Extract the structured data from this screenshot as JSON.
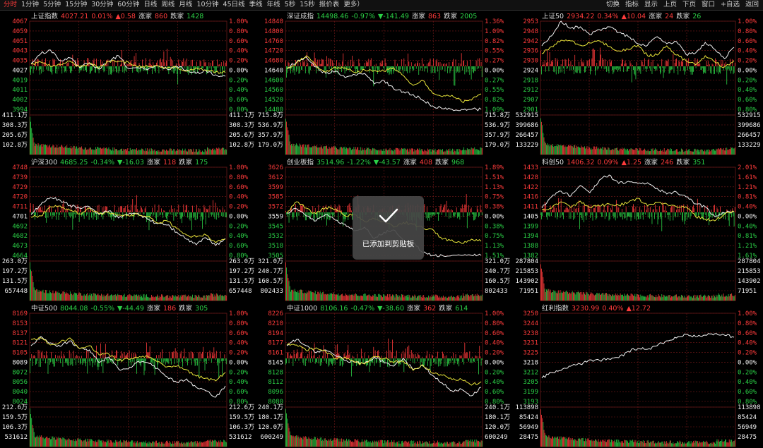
{
  "timeframes": [
    {
      "label": "分时",
      "active": true
    },
    {
      "label": "1分钟"
    },
    {
      "label": "5分钟"
    },
    {
      "label": "15分钟"
    },
    {
      "label": "30分钟"
    },
    {
      "label": "60分钟"
    },
    {
      "label": "日线"
    },
    {
      "label": "周线"
    },
    {
      "label": "月线"
    },
    {
      "label": "10分钟"
    },
    {
      "label": "45日线"
    },
    {
      "label": "季线"
    },
    {
      "label": "年线"
    },
    {
      "label": "5秒"
    },
    {
      "label": "15秒"
    },
    {
      "label": "报价表"
    },
    {
      "label": "更多）"
    }
  ],
  "tools": [
    {
      "label": "切换"
    },
    {
      "label": "指标"
    },
    {
      "label": "显示"
    },
    {
      "label": "上页"
    },
    {
      "label": "下页"
    },
    {
      "label": "窗口"
    },
    {
      "label": "+自选"
    },
    {
      "label": "返回"
    }
  ],
  "colors": {
    "up": "#ff3b3b",
    "down": "#2bd046",
    "white": "#f0f0f0",
    "yellow": "#e8e43a",
    "grid": "#7a1b1b",
    "bg": "#000000"
  },
  "toast": {
    "icon": "check-icon",
    "message": "已添加到剪贴板"
  },
  "panels": [
    {
      "name": "上证指数",
      "price": "4027.21",
      "pct": "0.01%",
      "chg": "▲0.58",
      "dir": "up",
      "rise_label": "涨家",
      "rise": "860",
      "fall_label": "跌家",
      "fall": "1428",
      "y_left": [
        "4067",
        "4059",
        "4051",
        "4043",
        "4035",
        "4027",
        "4019",
        "4011",
        "4002",
        "3994"
      ],
      "y_right": [
        "1.00%",
        "0.80%",
        "0.60%",
        "0.40%",
        "0.20%",
        "0.00%",
        "0.20%",
        "0.40%",
        "0.60%",
        "0.80%"
      ],
      "vol_left": [
        "411.1万",
        "308.3万",
        "205.6万",
        "102.8万"
      ],
      "vol_right": [
        "411.1万",
        "308.3万",
        "205.6万",
        "102.8万"
      ],
      "white": [
        4,
        18,
        23,
        8,
        12,
        -2,
        5,
        -4,
        7,
        15,
        -3,
        -2,
        -5,
        1,
        -4,
        0,
        -5,
        -10,
        -6,
        -12,
        -14
      ],
      "yellow": [
        3,
        6,
        0,
        2,
        7,
        -1,
        4,
        -2,
        7,
        7,
        6,
        -1,
        0,
        1,
        -2,
        -2,
        -7,
        -2,
        -5,
        -8,
        -9
      ]
    },
    {
      "name": "深证成指",
      "price": "14498.46",
      "pct": "-0.97%",
      "chg": "▼-141.49",
      "dir": "down",
      "rise_label": "涨家",
      "rise": "863",
      "fall_label": "跌家",
      "fall": "2005",
      "y_left": [
        "14840",
        "14800",
        "14760",
        "14720",
        "14680",
        "14640",
        "14600",
        "14560",
        "14520",
        "14480"
      ],
      "y_right": [
        "1.36%",
        "1.09%",
        "0.82%",
        "0.55%",
        "0.27%",
        "0.00%",
        "0.27%",
        "0.55%",
        "0.82%",
        "1.09%"
      ],
      "vol_left": [
        "715.8万",
        "536.9万",
        "357.9万",
        "179.0万"
      ],
      "vol_right": [
        "715.8万",
        "536.9万",
        "357.9万",
        "179.0万"
      ],
      "white": [
        -3,
        6,
        13,
        -1,
        -10,
        -7,
        -16,
        -12,
        -10,
        -25,
        -20,
        -32,
        -36,
        -40,
        -48,
        -56,
        -60,
        -66,
        -86,
        -92,
        -75
      ],
      "yellow": [
        -4,
        5,
        15,
        1,
        -8,
        -1,
        -2,
        -9,
        -5,
        -6,
        -7,
        -2,
        -13,
        -27,
        -20,
        -38,
        -43,
        -41,
        -50,
        -48,
        -39
      ]
    },
    {
      "name": "上证50",
      "price": "2934.22",
      "pct": "0.34%",
      "chg": "▲10.04",
      "dir": "up",
      "rise_label": "涨家",
      "rise": "24",
      "fall_label": "跌家",
      "fall": "26",
      "y_left": [
        "2953",
        "2948",
        "2942",
        "2936",
        "2930",
        "2924",
        "2918",
        "2912",
        "2907",
        "2901"
      ],
      "y_right": [
        "1.00%",
        "0.80%",
        "0.60%",
        "0.40%",
        "0.20%",
        "0.00%",
        "0.20%",
        "0.40%",
        "0.60%",
        "0.80%"
      ],
      "vol_left": [
        "532915",
        "399686",
        "266457",
        "133229"
      ],
      "vol_right": [
        "532915",
        "399686",
        "266457",
        "133229"
      ],
      "white": [
        29,
        43,
        64,
        54,
        56,
        45,
        52,
        56,
        48,
        42,
        32,
        30,
        42,
        32,
        35,
        17,
        19,
        34,
        24,
        11,
        27
      ],
      "yellow": [
        18,
        28,
        37,
        36,
        30,
        33,
        36,
        28,
        22,
        24,
        30,
        15,
        16,
        29,
        16,
        8,
        2,
        15,
        6,
        -1,
        8
      ]
    },
    {
      "name": "沪深300",
      "price": "4685.25",
      "pct": "-0.34%",
      "chg": "▼-16.03",
      "dir": "down",
      "rise_label": "涨家",
      "rise": "118",
      "fall_label": "跌家",
      "fall": "175",
      "y_left": [
        "4748",
        "4739",
        "4729",
        "4720",
        "4711",
        "4701",
        "4692",
        "4682",
        "4673",
        "4664"
      ],
      "y_right": [
        "1.00%",
        "0.80%",
        "0.60%",
        "0.40%",
        "0.20%",
        "0.00%",
        "0.20%",
        "0.40%",
        "0.60%",
        "0.80%"
      ],
      "vol_left": [
        "263.0万",
        "197.2万",
        "131.5万",
        "657448"
      ],
      "vol_right": [
        "263.0万",
        "197.2万",
        "131.5万",
        "657448"
      ],
      "white": [
        -3,
        11,
        21,
        17,
        10,
        6,
        8,
        -3,
        2,
        -8,
        -3,
        -1,
        -10,
        -16,
        -18,
        -28,
        -38,
        -46,
        -36,
        -47,
        -37
      ],
      "yellow": [
        -7,
        -5,
        8,
        9,
        3,
        -2,
        6,
        -2,
        0,
        -4,
        -4,
        -3,
        -6,
        -15,
        -12,
        -23,
        -32,
        -35,
        -32,
        -43,
        -38
      ]
    },
    {
      "name": "创业板指",
      "price": "3514.96",
      "pct": "-1.22%",
      "chg": "▼-43.57",
      "dir": "down",
      "rise_label": "涨家",
      "rise": "408",
      "fall_label": "跌家",
      "fall": "968",
      "y_left": [
        "3626",
        "3612",
        "3599",
        "3585",
        "3572",
        "3559",
        "3545",
        "3532",
        "3518",
        "3505"
      ],
      "y_right": [
        "1.89%",
        "1.51%",
        "1.13%",
        "0.75%",
        "0.38%",
        "0.00%",
        "0.38%",
        "0.75%",
        "1.13%",
        "1.51%"
      ],
      "vol_left": [
        "321.0万",
        "240.7万",
        "160.5万",
        "802433"
      ],
      "vol_right": [
        "321.0万",
        "240.7万",
        "160.5万",
        "802433"
      ],
      "white": [
        -1,
        5,
        -5,
        -12,
        -3,
        -11,
        -17,
        -26,
        -21,
        -37,
        -28,
        -25,
        -40,
        -43,
        -57,
        -68,
        -66,
        -74,
        -88,
        -76,
        -66
      ],
      "yellow": [
        -1,
        15,
        6,
        -2,
        7,
        5,
        -5,
        -3,
        -13,
        -9,
        -13,
        -21,
        -14,
        -17,
        -22,
        -24,
        -38,
        -39,
        -44,
        -38,
        -41
      ]
    },
    {
      "name": "科创50",
      "price": "1406.32",
      "pct": "0.09%",
      "chg": "▲1.25",
      "dir": "up",
      "rise_label": "涨家",
      "rise": "246",
      "fall_label": "跌家",
      "fall": "351",
      "y_left": [
        "1433",
        "1428",
        "1422",
        "1416",
        "1411",
        "1405",
        "1399",
        "1394",
        "1388",
        "1382"
      ],
      "y_right": [
        "2.01%",
        "1.61%",
        "1.21%",
        "0.81%",
        "0.40%",
        "0.00%",
        "0.40%",
        "0.81%",
        "1.21%",
        "1.61%"
      ],
      "vol_left": [
        "287804",
        "215853",
        "143902",
        "71951"
      ],
      "vol_right": [
        "287804",
        "215853",
        "143902",
        "71951"
      ],
      "white": [
        6,
        22,
        30,
        23,
        38,
        28,
        46,
        53,
        41,
        44,
        41,
        42,
        34,
        26,
        29,
        22,
        12,
        8,
        -6,
        -1,
        2
      ],
      "yellow": [
        4,
        6,
        15,
        7,
        16,
        7,
        9,
        12,
        10,
        14,
        20,
        9,
        14,
        12,
        8,
        8,
        -6,
        -10,
        -12,
        -3,
        1
      ]
    },
    {
      "name": "中证500",
      "price": "8044.08",
      "pct": "-0.55%",
      "chg": "▼-44.49",
      "dir": "down",
      "rise_label": "涨家",
      "rise": "186",
      "fall_label": "跌家",
      "fall": "305",
      "y_left": [
        "8169",
        "8153",
        "8137",
        "8121",
        "8105",
        "8089",
        "8072",
        "8056",
        "8040",
        "8024"
      ],
      "y_right": [
        "1.00%",
        "0.80%",
        "0.60%",
        "0.40%",
        "0.20%",
        "0.00%",
        "0.20%",
        "0.40%",
        "0.60%",
        "0.80%"
      ],
      "vol_left": [
        "212.6万",
        "159.5万",
        "106.3万",
        "531612"
      ],
      "vol_right": [
        "212.6万",
        "159.5万",
        "106.3万",
        "531612"
      ],
      "white": [
        18,
        31,
        22,
        17,
        25,
        14,
        12,
        -6,
        2,
        -15,
        -15,
        -4,
        -6,
        -14,
        -26,
        -34,
        -29,
        -41,
        -46,
        -55,
        -39
      ],
      "yellow": [
        27,
        29,
        19,
        23,
        29,
        14,
        18,
        5,
        6,
        -3,
        -1,
        1,
        3,
        -5,
        -12,
        -11,
        -16,
        -25,
        -28,
        -32,
        -20
      ]
    },
    {
      "name": "中证1000",
      "price": "8106.16",
      "pct": "-0.47%",
      "chg": "▼-38.60",
      "dir": "down",
      "rise_label": "涨家",
      "rise": "362",
      "fall_label": "跌家",
      "fall": "614",
      "y_left": [
        "8226",
        "8210",
        "8194",
        "8177",
        "8161",
        "8145",
        "8128",
        "8112",
        "8096",
        "8080"
      ],
      "y_right": [
        "1.00%",
        "0.80%",
        "0.60%",
        "0.40%",
        "0.20%",
        "0.00%",
        "0.20%",
        "0.40%",
        "0.60%",
        "0.80%"
      ],
      "vol_left": [
        "240.1万",
        "180.1万",
        "120.0万",
        "600249"
      ],
      "vol_right": [
        "240.1万",
        "180.1万",
        "120.0万",
        "600249"
      ],
      "white": [
        18,
        27,
        18,
        8,
        12,
        4,
        -3,
        -5,
        -7,
        2,
        -6,
        -11,
        0,
        -16,
        -10,
        -24,
        -35,
        -46,
        -44,
        -53,
        -41
      ],
      "yellow": [
        19,
        19,
        11,
        15,
        10,
        0,
        2,
        -6,
        -8,
        3,
        0,
        -6,
        -4,
        -17,
        -9,
        -21,
        -24,
        -30,
        -30,
        -38,
        -33
      ]
    },
    {
      "name": "红利指数",
      "price": "3230.99",
      "pct": "0.40%",
      "chg": "▲12.72",
      "dir": "up",
      "rise_label": "涨家",
      "rise": "",
      "fall_label": "跌家",
      "fall": "",
      "y_left": [
        "3250",
        "3244",
        "3238",
        "3231",
        "3225",
        "3218",
        "3212",
        "3205",
        "3199",
        "3193"
      ],
      "y_right": [
        "1.00%",
        "0.80%",
        "0.60%",
        "0.40%",
        "0.20%",
        "0.00%",
        "0.20%",
        "0.40%",
        "0.60%",
        "0.80%"
      ],
      "vol_left": [
        "113898",
        "85424",
        "56949",
        "28475"
      ],
      "vol_right": [
        "113898",
        "85424",
        "56949",
        "28475"
      ],
      "white": [
        -28,
        -20,
        -17,
        -11,
        -8,
        -2,
        -3,
        -1,
        1,
        10,
        14,
        13,
        18,
        25,
        29,
        34,
        31,
        33,
        35,
        33,
        30
      ],
      "yellow": null
    }
  ]
}
